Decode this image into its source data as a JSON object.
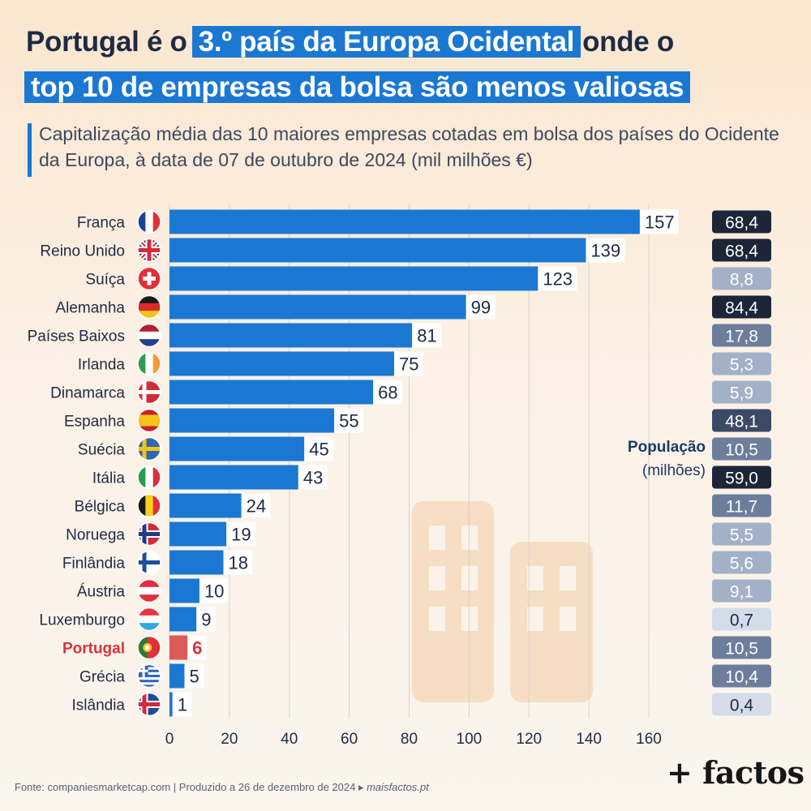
{
  "title": {
    "part1": "Portugal é o",
    "highlight1": "3.º país da Europa Ocidental",
    "part2": "onde o",
    "highlight2": "top 10 de empresas da bolsa são menos valiosas"
  },
  "subtitle": "Capitalização média das 10 maiores empresas cotadas em bolsa dos países do Ocidente da Europa, à data de 07 de outubro de 2024 (mil milhões €)",
  "population_label": {
    "title": "População",
    "unit": "(milhões)"
  },
  "footer": {
    "source": "Fonte: companiesmarketcap.com  |  Produzido a 26 de dezembro de 2024 ▸ ",
    "site": "maisfactos.pt"
  },
  "brand": "+ factos",
  "colors": {
    "bar": "#1a78d2",
    "highlight_bar": "#dc5b58",
    "highlight_text": "#d6353a",
    "grid": "#d9d3cb"
  },
  "chart_data": {
    "type": "bar",
    "orientation": "horizontal",
    "categories": [
      "França",
      "Reino Unido",
      "Suíça",
      "Alemanha",
      "Países Baixos",
      "Irlanda",
      "Dinamarca",
      "Espanha",
      "Suécia",
      "Itália",
      "Bélgica",
      "Noruega",
      "Finlândia",
      "Áustria",
      "Luxemburgo",
      "Portugal",
      "Grécia",
      "Islândia"
    ],
    "values": [
      157,
      139,
      123,
      99,
      81,
      75,
      68,
      55,
      45,
      43,
      24,
      19,
      18,
      10,
      9,
      6,
      5,
      1
    ],
    "population": [
      "68,4",
      "68,4",
      "8,8",
      "84,4",
      "17,8",
      "5,3",
      "5,9",
      "48,1",
      "10,5",
      "59,0",
      "11,7",
      "5,5",
      "5,6",
      "9,1",
      "0,7",
      "10,5",
      "10,4",
      "0,4"
    ],
    "highlight": "Portugal",
    "x_ticks": [
      0,
      20,
      40,
      60,
      80,
      100,
      120,
      140,
      160
    ],
    "xlim": [
      0,
      160
    ],
    "grid": true,
    "flags": [
      "france-flag-icon",
      "uk-flag-icon",
      "switzerland-flag-icon",
      "germany-flag-icon",
      "netherlands-flag-icon",
      "ireland-flag-icon",
      "denmark-flag-icon",
      "spain-flag-icon",
      "sweden-flag-icon",
      "italy-flag-icon",
      "belgium-flag-icon",
      "norway-flag-icon",
      "finland-flag-icon",
      "austria-flag-icon",
      "luxembourg-flag-icon",
      "portugal-flag-icon",
      "greece-flag-icon",
      "iceland-flag-icon"
    ]
  }
}
